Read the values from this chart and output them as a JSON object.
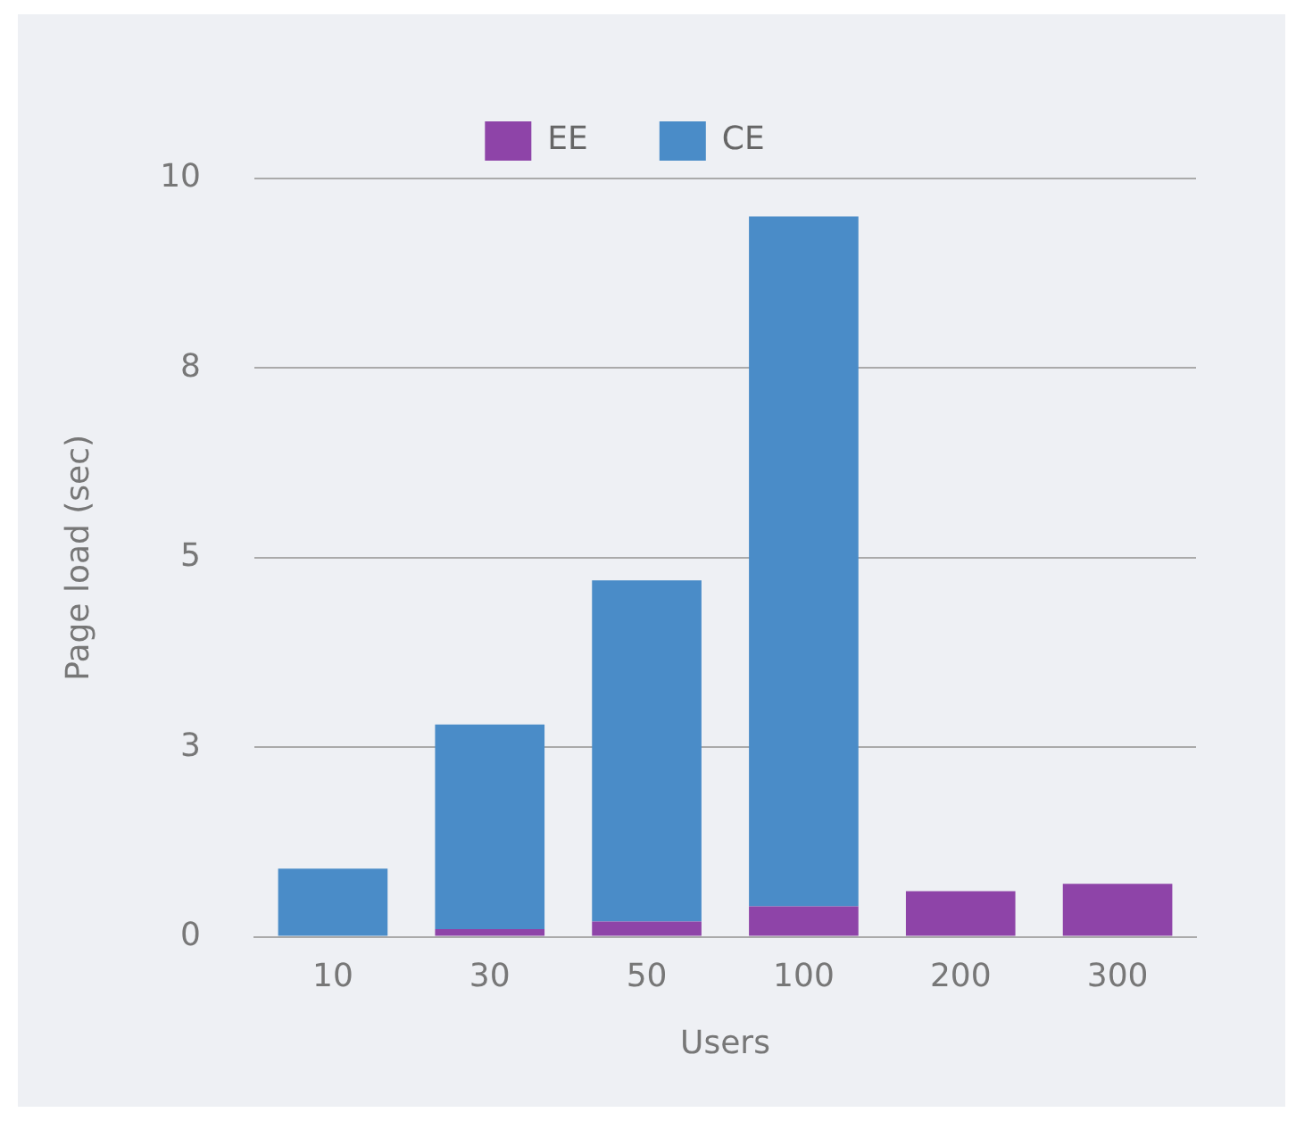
{
  "chart_data": {
    "type": "bar",
    "stacked": true,
    "xlabel": "Users",
    "ylabel": "Page load (sec)",
    "categories": [
      "10",
      "30",
      "50",
      "100",
      "200",
      "300"
    ],
    "series": [
      {
        "name": "EE",
        "color": "#8e44a8",
        "values": [
          0,
          0.1,
          0.2,
          0.4,
          0.6,
          0.7
        ]
      },
      {
        "name": "CE",
        "color": "#4a8cc8",
        "values": [
          0.9,
          2.7,
          4.5,
          9.1,
          null,
          null
        ]
      }
    ],
    "ylim": [
      0,
      10
    ],
    "yticks": [
      0,
      {
        "value": 2.5,
        "label": "3"
      },
      5,
      {
        "value": 7.5,
        "label": "8"
      },
      10
    ],
    "grid": "y",
    "legend": "top"
  }
}
